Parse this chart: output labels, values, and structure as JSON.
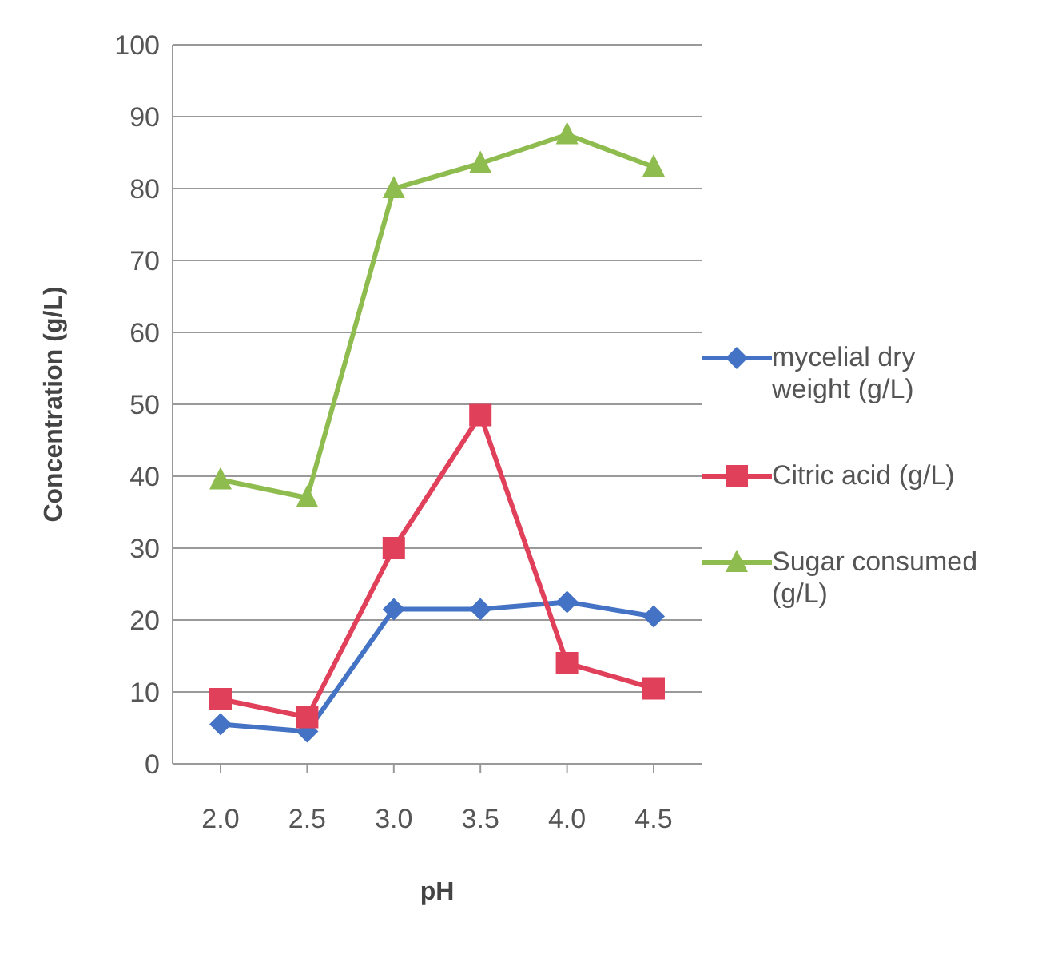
{
  "chart_data": {
    "type": "line",
    "xlabel": "pH",
    "ylabel": "Concentration (g/L)",
    "categories": [
      "2.0",
      "2.5",
      "3.0",
      "3.5",
      "4.0",
      "4.5"
    ],
    "series": [
      {
        "name": "mycelial dry weight (g/L)",
        "color": "#4472c4",
        "marker": "diamond",
        "values": [
          5.5,
          4.5,
          21.5,
          21.5,
          22.5,
          20.5
        ]
      },
      {
        "name": "Citric acid (g/L)",
        "color": "#e0405a",
        "marker": "square",
        "values": [
          9,
          6.5,
          30,
          48.5,
          14,
          10.5
        ]
      },
      {
        "name": "Sugar consumed (g/L)",
        "color": "#8fbc4f",
        "marker": "triangle",
        "values": [
          39.5,
          37,
          80,
          83.5,
          87.5,
          83
        ]
      }
    ],
    "ylim": [
      0,
      100
    ],
    "yticks": [
      0,
      10,
      20,
      30,
      40,
      50,
      60,
      70,
      80,
      90,
      100
    ],
    "grid": "y",
    "legend": "right"
  }
}
